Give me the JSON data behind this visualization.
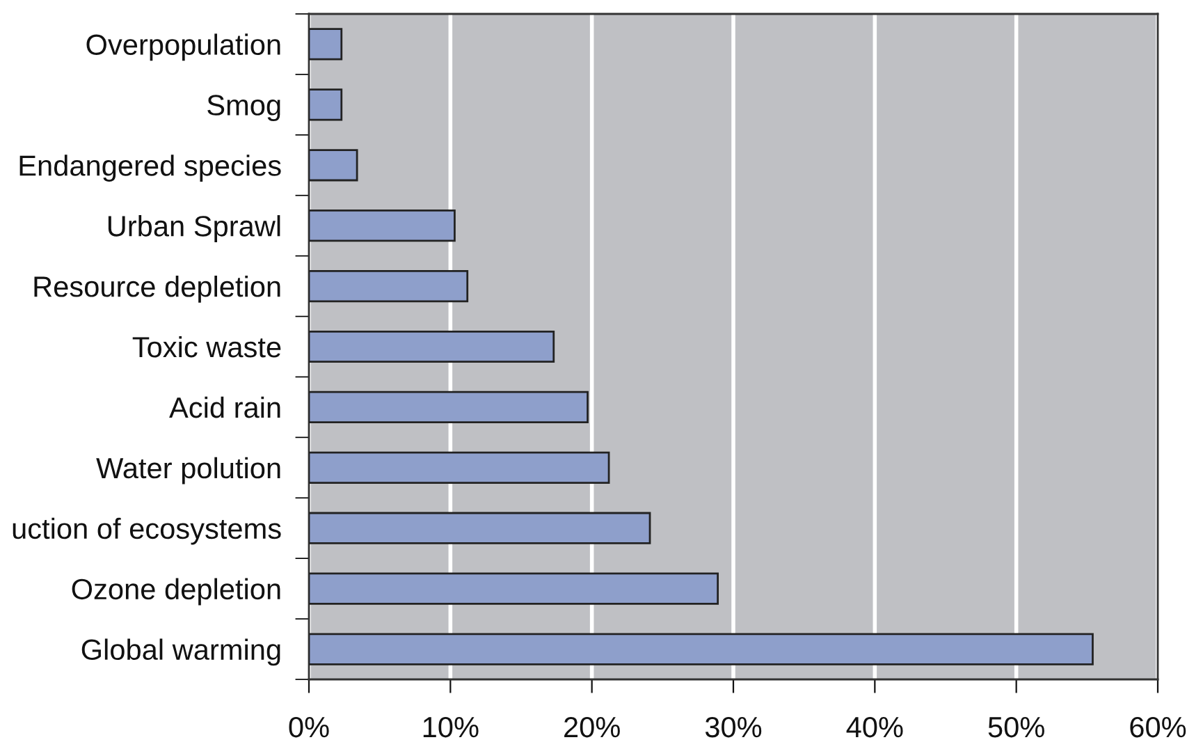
{
  "chart_data": {
    "type": "bar",
    "orientation": "horizontal",
    "categories": [
      "Overpopulation",
      "Smog",
      "Endangered species",
      "Urban Sprawl",
      "Resource depletion",
      "Toxic waste",
      "Acid rain",
      "Water polution",
      "uction of ecosystems",
      "Ozone depletion",
      "Global warming"
    ],
    "values": [
      2.3,
      2.3,
      3.4,
      10.3,
      11.2,
      17.3,
      19.7,
      21.2,
      24.1,
      28.9,
      55.4
    ],
    "color": "#8e9fcb",
    "xlim": [
      0,
      60
    ],
    "xticks": [
      {
        "value": 0,
        "label": "0%"
      },
      {
        "value": 10,
        "label": "10%"
      },
      {
        "value": 20,
        "label": "20%"
      },
      {
        "value": 30,
        "label": "30%"
      },
      {
        "value": 40,
        "label": "40%"
      },
      {
        "value": 50,
        "label": "50%"
      },
      {
        "value": 60,
        "label": "60%"
      }
    ],
    "grid": "x"
  }
}
